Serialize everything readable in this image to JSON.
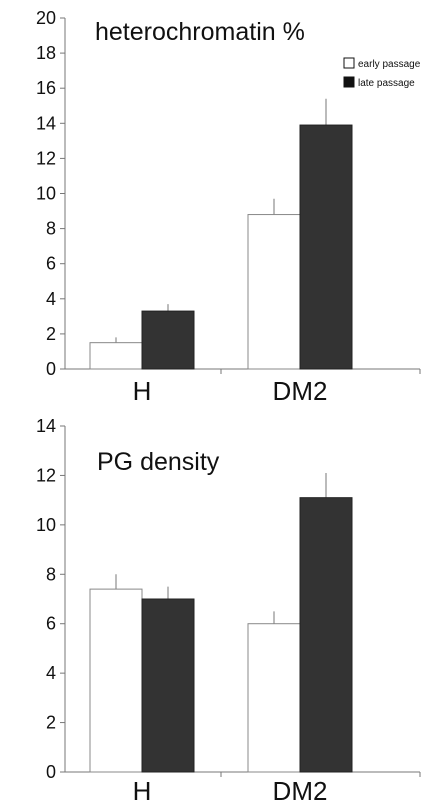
{
  "chart_data": [
    {
      "type": "bar",
      "title": "heterochromatin %",
      "categories": [
        "H",
        "DM2"
      ],
      "series": [
        {
          "name": "early passage",
          "values": [
            1.5,
            8.8
          ],
          "errors": [
            0.3,
            0.9
          ],
          "color": "#ffffff"
        },
        {
          "name": "late passage",
          "values": [
            3.3,
            13.9
          ],
          "errors": [
            0.4,
            1.5
          ],
          "color": "#333333"
        }
      ],
      "ylim": [
        0,
        20
      ],
      "yticks": [
        0,
        2,
        4,
        6,
        8,
        10,
        12,
        14,
        16,
        18,
        20
      ],
      "legend": "top-right",
      "grid": false
    },
    {
      "type": "bar",
      "title": "PG density",
      "categories": [
        "H",
        "DM2"
      ],
      "series": [
        {
          "values": [
            7.4,
            6.0
          ],
          "errors": [
            0.6,
            0.5
          ],
          "color": "#ffffff"
        },
        {
          "values": [
            7.0,
            11.1
          ],
          "errors": [
            0.5,
            1.0
          ],
          "color": "#333333"
        }
      ],
      "ylim": [
        0,
        14
      ],
      "yticks": [
        0,
        2,
        4,
        6,
        8,
        10,
        12,
        14
      ],
      "grid": false
    }
  ]
}
